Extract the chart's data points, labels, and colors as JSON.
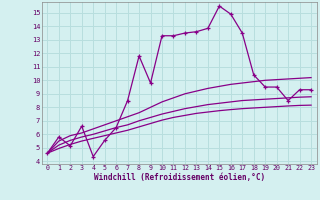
{
  "title": "",
  "xlabel": "Windchill (Refroidissement éolien,°C)",
  "background_color": "#d4f0f0",
  "grid_color": "#b8dede",
  "line_color": "#880088",
  "xlim": [
    -0.5,
    23.5
  ],
  "ylim": [
    3.8,
    15.8
  ],
  "yticks": [
    4,
    5,
    6,
    7,
    8,
    9,
    10,
    11,
    12,
    13,
    14,
    15
  ],
  "xticks": [
    0,
    1,
    2,
    3,
    4,
    5,
    6,
    7,
    8,
    9,
    10,
    11,
    12,
    13,
    14,
    15,
    16,
    17,
    18,
    19,
    20,
    21,
    22,
    23
  ],
  "series": [
    {
      "x": [
        0,
        1,
        2,
        3,
        4,
        5,
        6,
        7,
        8,
        9,
        10,
        11,
        12,
        13,
        14,
        15,
        16,
        17,
        18,
        19,
        20,
        21,
        22,
        23
      ],
      "y": [
        4.6,
        5.5,
        5.9,
        6.1,
        6.4,
        6.7,
        7.0,
        7.3,
        7.6,
        8.0,
        8.4,
        8.7,
        9.0,
        9.2,
        9.4,
        9.55,
        9.7,
        9.8,
        9.9,
        10.0,
        10.05,
        10.1,
        10.15,
        10.2
      ],
      "marker": false
    },
    {
      "x": [
        0,
        1,
        2,
        3,
        4,
        5,
        6,
        7,
        8,
        9,
        10,
        11,
        12,
        13,
        14,
        15,
        16,
        17,
        18,
        19,
        20,
        21,
        22,
        23
      ],
      "y": [
        4.6,
        5.2,
        5.55,
        5.8,
        6.0,
        6.25,
        6.5,
        6.7,
        7.0,
        7.25,
        7.5,
        7.7,
        7.9,
        8.05,
        8.2,
        8.3,
        8.4,
        8.5,
        8.55,
        8.6,
        8.65,
        8.7,
        8.75,
        8.78
      ],
      "marker": false
    },
    {
      "x": [
        0,
        1,
        2,
        3,
        4,
        5,
        6,
        7,
        8,
        9,
        10,
        11,
        12,
        13,
        14,
        15,
        16,
        17,
        18,
        19,
        20,
        21,
        22,
        23
      ],
      "y": [
        4.6,
        4.95,
        5.25,
        5.5,
        5.7,
        5.9,
        6.1,
        6.3,
        6.55,
        6.8,
        7.05,
        7.25,
        7.4,
        7.55,
        7.65,
        7.75,
        7.83,
        7.9,
        7.95,
        8.0,
        8.05,
        8.1,
        8.14,
        8.16
      ],
      "marker": false
    },
    {
      "x": [
        0,
        1,
        2,
        3,
        4,
        5,
        6,
        7,
        8,
        9,
        10,
        11,
        12,
        13,
        14,
        15,
        16,
        17,
        18,
        19,
        20,
        21,
        22,
        23
      ],
      "y": [
        4.6,
        5.8,
        5.15,
        6.6,
        4.35,
        5.55,
        6.5,
        8.5,
        11.8,
        9.8,
        13.3,
        13.3,
        13.5,
        13.6,
        13.85,
        15.5,
        14.9,
        13.5,
        10.4,
        9.5,
        9.5,
        8.5,
        9.3,
        9.3
      ],
      "marker": true
    }
  ]
}
